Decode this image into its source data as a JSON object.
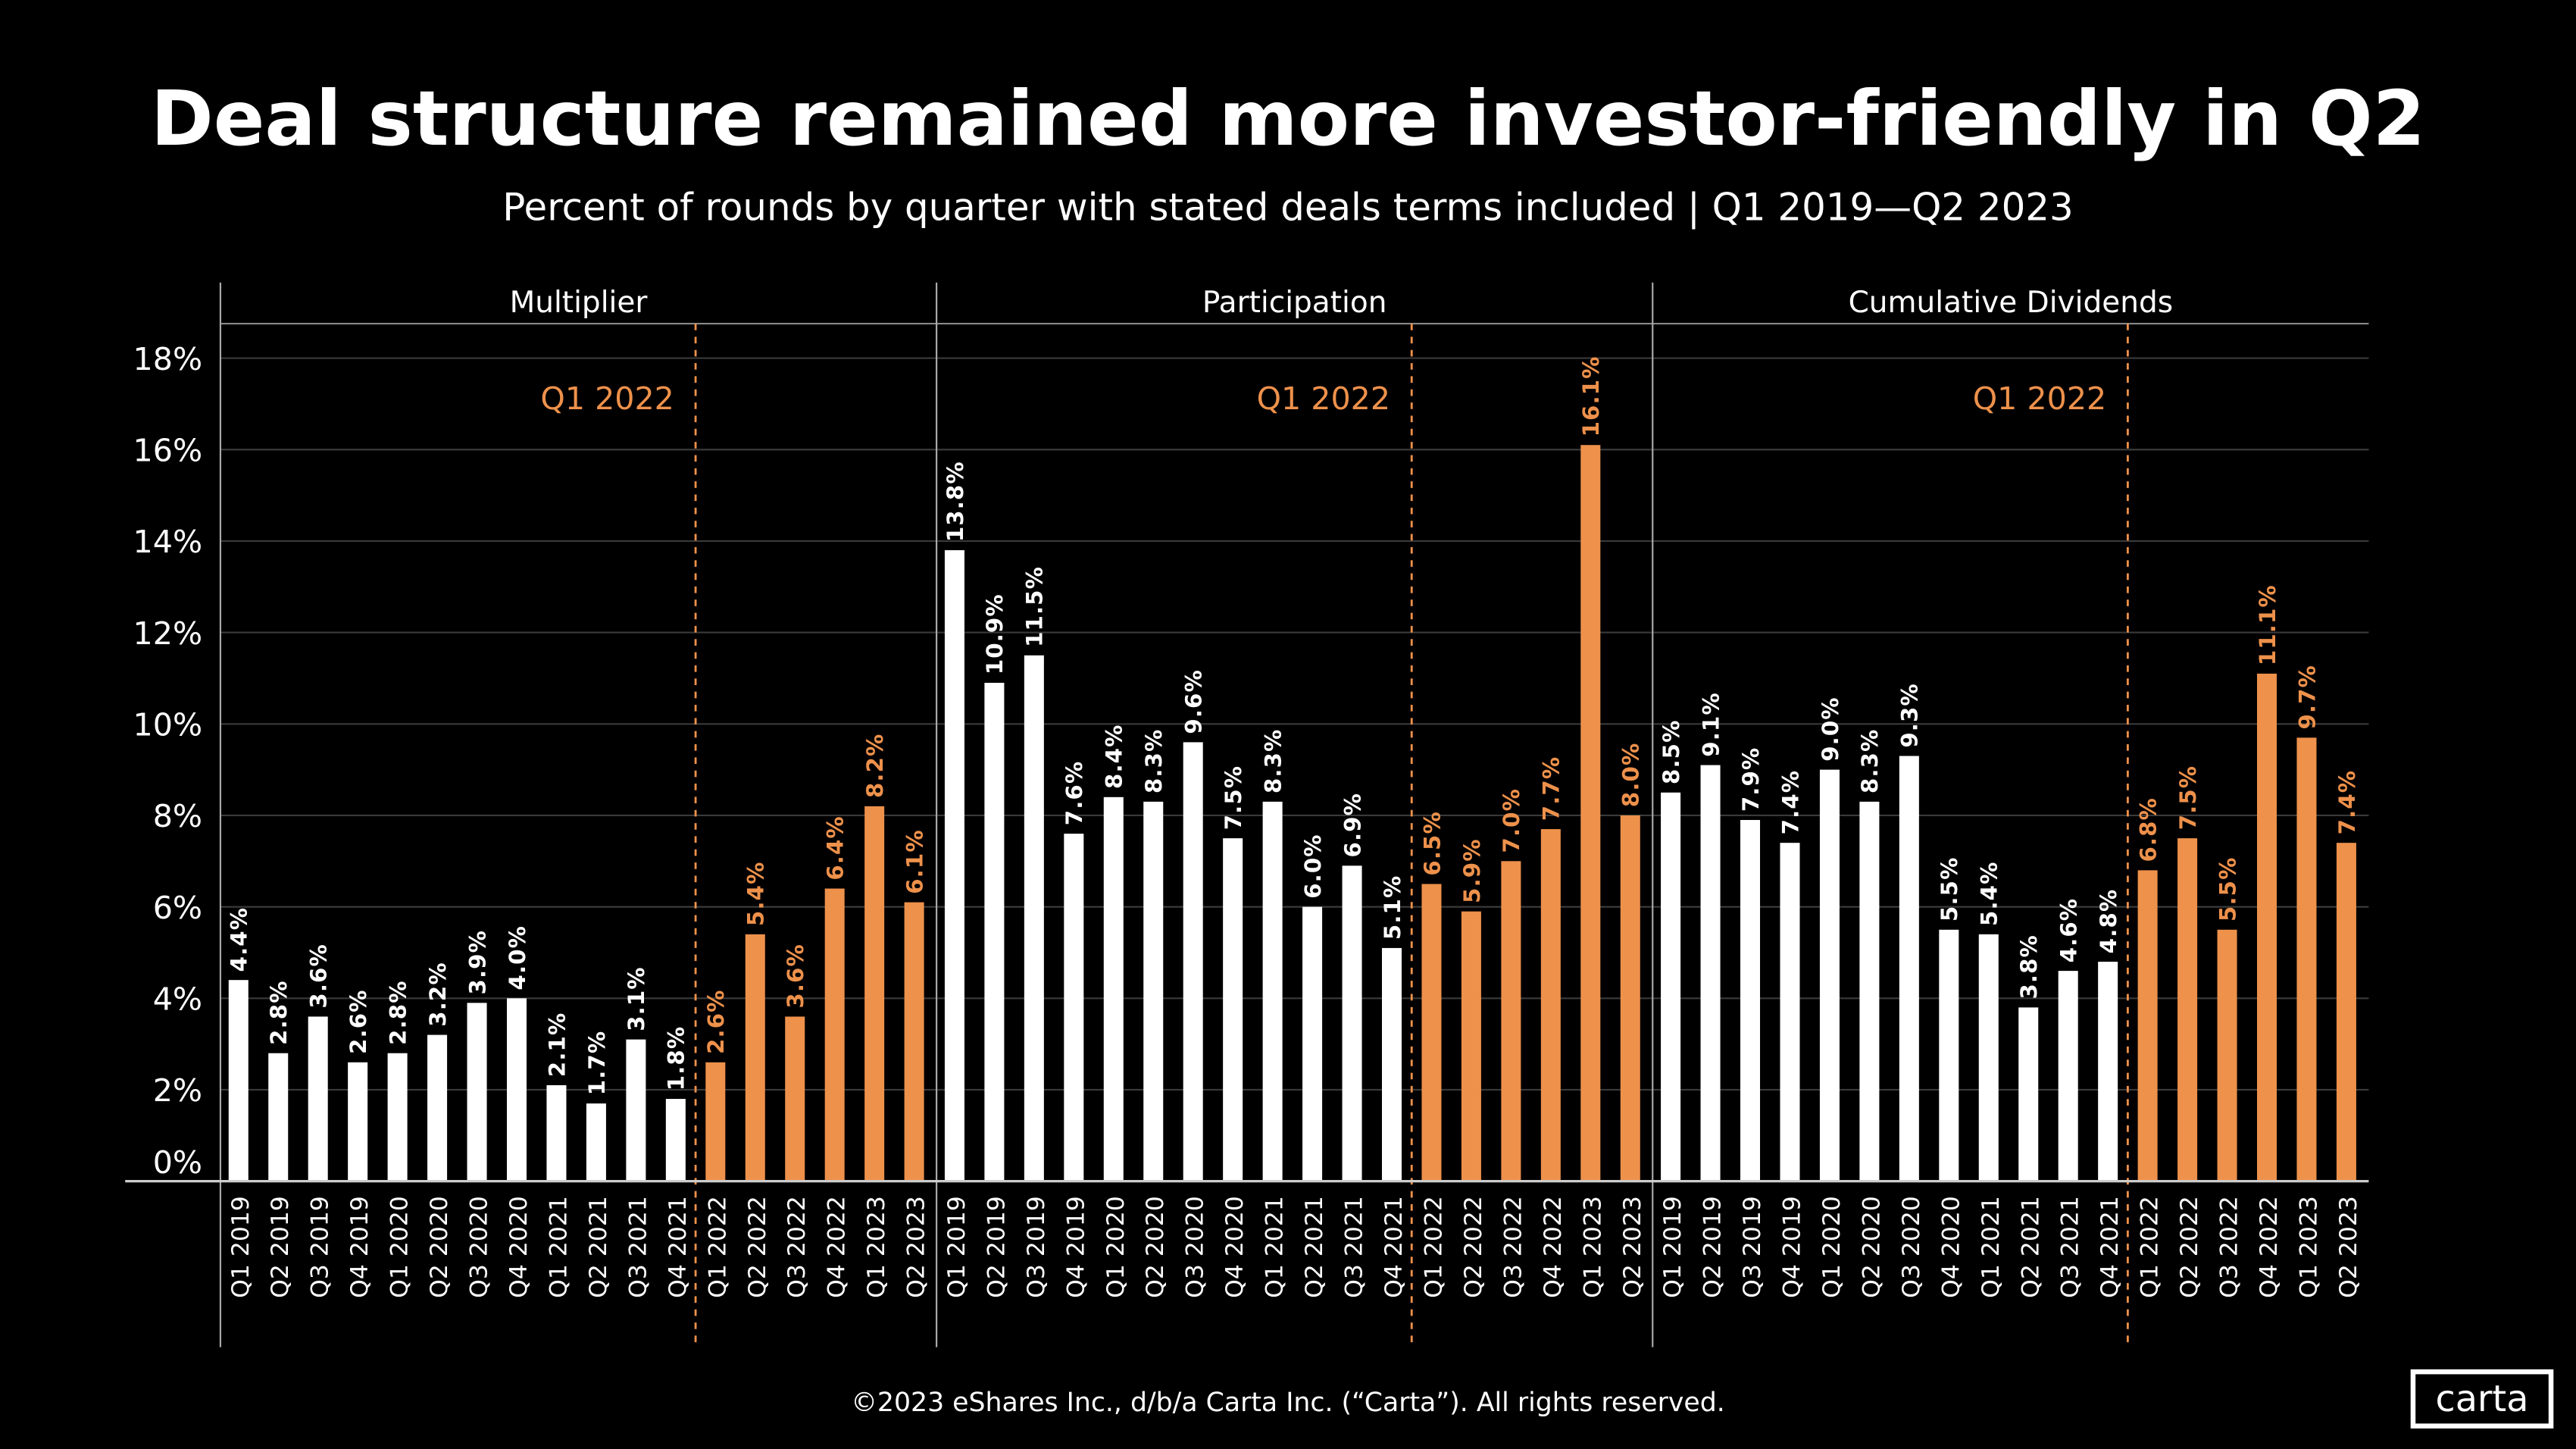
{
  "title": "Deal structure remained more investor-friendly in Q2",
  "subtitle": "Percent of rounds by quarter with stated deals terms included | Q1 2019—Q2 2023",
  "footer": "©2023 eShares Inc., d/b/a Carta Inc. (“Carta”). All rights reserved.",
  "logo": "carta",
  "colors": {
    "background": "#000000",
    "pre_2022": "#ffffff",
    "post_2022": "#ee914b",
    "grid": "#3a3a3a"
  },
  "chart_data": {
    "type": "bar",
    "ylim": [
      0,
      18
    ],
    "yticks": [
      "0%",
      "2%",
      "4%",
      "6%",
      "8%",
      "10%",
      "12%",
      "14%",
      "16%",
      "18%"
    ],
    "grid": true,
    "categories": [
      "Q1 2019",
      "Q2 2019",
      "Q3 2019",
      "Q4 2019",
      "Q1 2020",
      "Q2 2020",
      "Q3 2020",
      "Q4 2020",
      "Q1 2021",
      "Q2 2021",
      "Q3 2021",
      "Q4 2021",
      "Q1 2022",
      "Q2 2022",
      "Q3 2022",
      "Q4 2022",
      "Q1 2023",
      "Q2 2023"
    ],
    "marker_label": "Q1 2022",
    "panels": [
      {
        "name": "Multiplier",
        "values": [
          4.4,
          2.8,
          3.6,
          2.6,
          2.8,
          3.2,
          3.9,
          4.0,
          2.1,
          1.7,
          3.1,
          1.8,
          2.6,
          5.4,
          3.6,
          6.4,
          8.2,
          6.1
        ]
      },
      {
        "name": "Participation",
        "values": [
          13.8,
          10.9,
          11.5,
          7.6,
          8.4,
          8.3,
          9.6,
          7.5,
          8.3,
          6.0,
          6.9,
          5.1,
          6.5,
          5.9,
          7.0,
          7.7,
          16.1,
          8.0
        ]
      },
      {
        "name": "Cumulative Dividends",
        "values": [
          8.5,
          9.1,
          7.9,
          7.4,
          9.0,
          8.3,
          9.3,
          5.5,
          5.4,
          3.8,
          4.6,
          4.8,
          6.8,
          7.5,
          5.5,
          11.1,
          9.7,
          7.4
        ]
      }
    ]
  }
}
